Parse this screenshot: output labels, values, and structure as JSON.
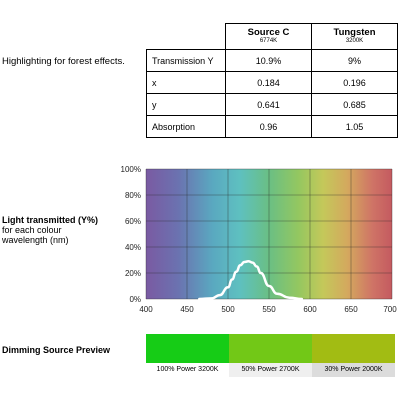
{
  "description": "Highlighting for forest effects.",
  "table": {
    "columns": [
      {
        "name": "Source C",
        "temp": "6774K"
      },
      {
        "name": "Tungsten",
        "temp": "3200K"
      }
    ],
    "rows": [
      {
        "label": "Transmission Y",
        "values": [
          "10.9%",
          "9%"
        ]
      },
      {
        "label": "x",
        "values": [
          "0.184",
          "0.196"
        ]
      },
      {
        "label": "y",
        "values": [
          "0.641",
          "0.685"
        ]
      },
      {
        "label": "Absorption",
        "values": [
          "0.96",
          "1.05"
        ]
      }
    ]
  },
  "chart_caption": {
    "title": "Light transmitted (Y%)",
    "subtitle_lines": [
      "for each colour",
      "wavelength (nm)"
    ]
  },
  "chart_data": {
    "type": "line",
    "title": "",
    "xlabel": "",
    "ylabel": "",
    "xlim": [
      400,
      700
    ],
    "ylim": [
      0,
      100
    ],
    "x_ticks": [
      400,
      450,
      500,
      550,
      600,
      650,
      700
    ],
    "y_ticks": [
      "0%",
      "20%",
      "40%",
      "60%",
      "80%",
      "100%"
    ],
    "y_tick_values": [
      0,
      20,
      40,
      60,
      80,
      100
    ],
    "grid": true,
    "background": "visible spectrum gradient",
    "series": [
      {
        "color": "#ffffff",
        "x": [
          465,
          480,
          490,
          500,
          505,
          510,
          515,
          520,
          525,
          530,
          535,
          540,
          550,
          560,
          575,
          590
        ],
        "y": [
          0,
          0.5,
          3,
          9,
          15,
          21,
          26,
          28.5,
          29,
          28,
          25,
          20,
          10,
          4,
          1,
          0
        ]
      }
    ]
  },
  "dimming": {
    "title": "Dimming Source Preview",
    "items": [
      {
        "label": "100% Power 3200K",
        "color": "#16cc16"
      },
      {
        "label": "50% Power 2700K",
        "color": "#72c817"
      },
      {
        "label": "30% Power 2000K",
        "color": "#a2bc13"
      }
    ],
    "label_backgrounds": [
      "#ffffff",
      "#efefef",
      "#dcdcdc"
    ]
  }
}
